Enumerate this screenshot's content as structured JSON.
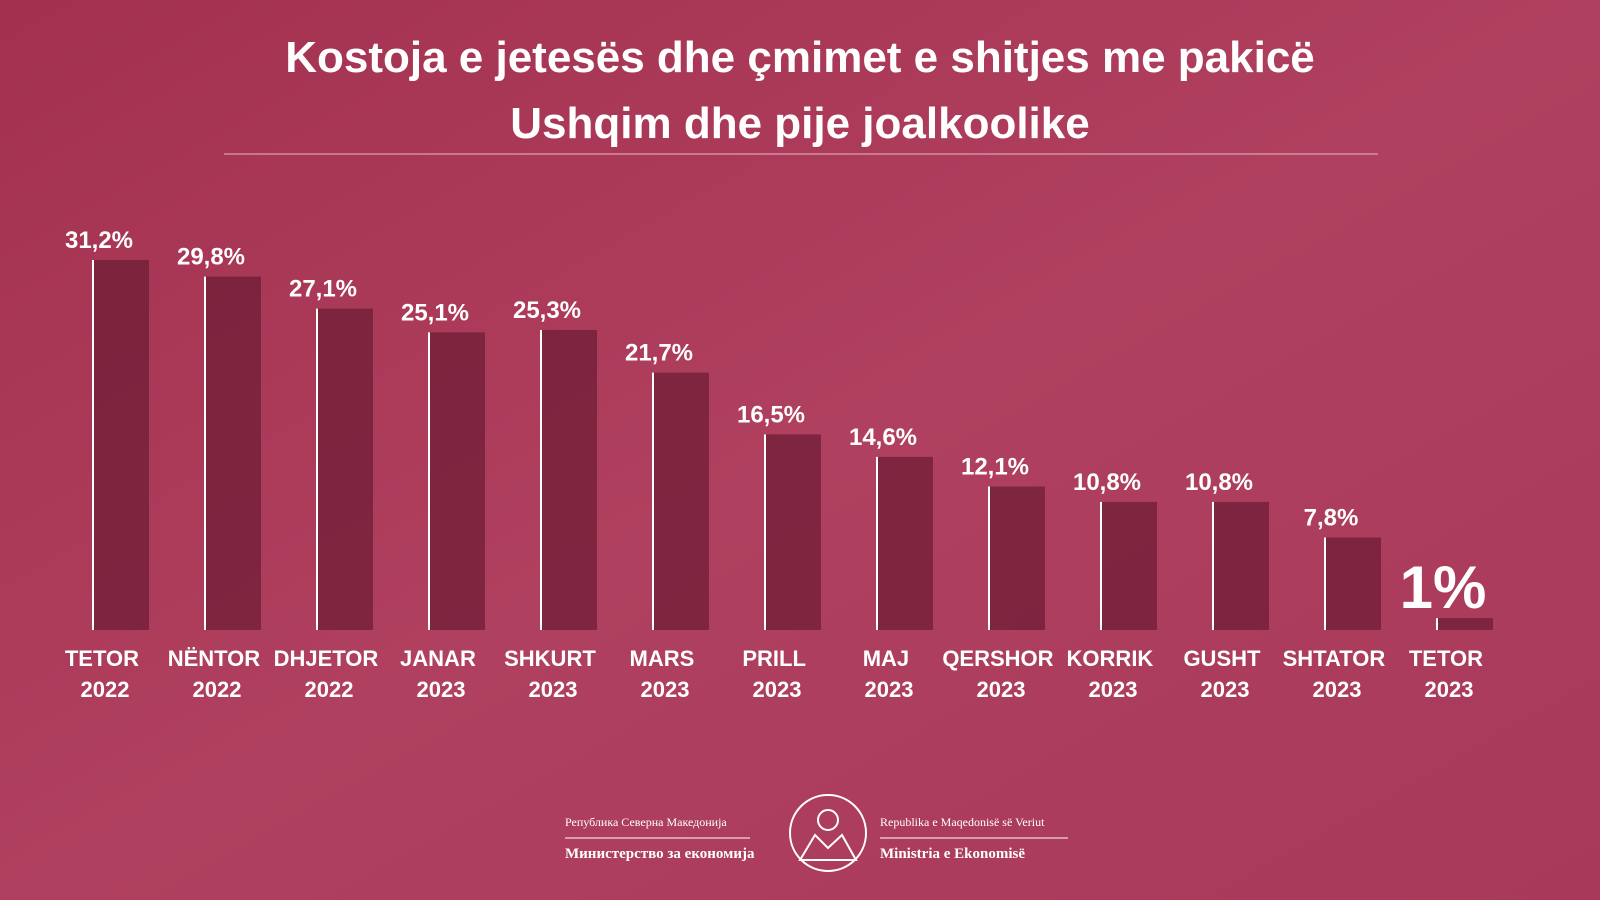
{
  "chart_data": {
    "type": "bar",
    "title": "Kostoja e jetesës dhe çmimet e shitjes me pakicë",
    "subtitle": "Ushqim dhe pije joalkoolike",
    "categories": [
      "TETOR 2022",
      "NËNTOR 2022",
      "DHJETOR 2022",
      "JANAR 2023",
      "SHKURT 2023",
      "MARS 2023",
      "PRILL 2023",
      "MAJ 2023",
      "QERSHOR 2023",
      "KORRIK 2023",
      "GUSHT 2023",
      "SHTATOR 2023",
      "TETOR 2023"
    ],
    "values": [
      31.2,
      29.8,
      27.1,
      25.1,
      25.3,
      21.7,
      16.5,
      14.6,
      12.1,
      10.8,
      10.8,
      7.8,
      1
    ],
    "value_labels": [
      "31,2%",
      "29,8%",
      "27,1%",
      "25,1%",
      "25,3%",
      "21,7%",
      "16,5%",
      "14,6%",
      "12,1%",
      "10,8%",
      "10,8%",
      "7,8%",
      "1%"
    ],
    "color": "#6e1d37"
  },
  "footer": {
    "left_top": "Република Северна Македонија",
    "left_bottom": "Министерство за економија",
    "right_top": "Republika e Maqedonisë së Veriut",
    "right_bottom": "Ministria e Ekonomisë"
  }
}
